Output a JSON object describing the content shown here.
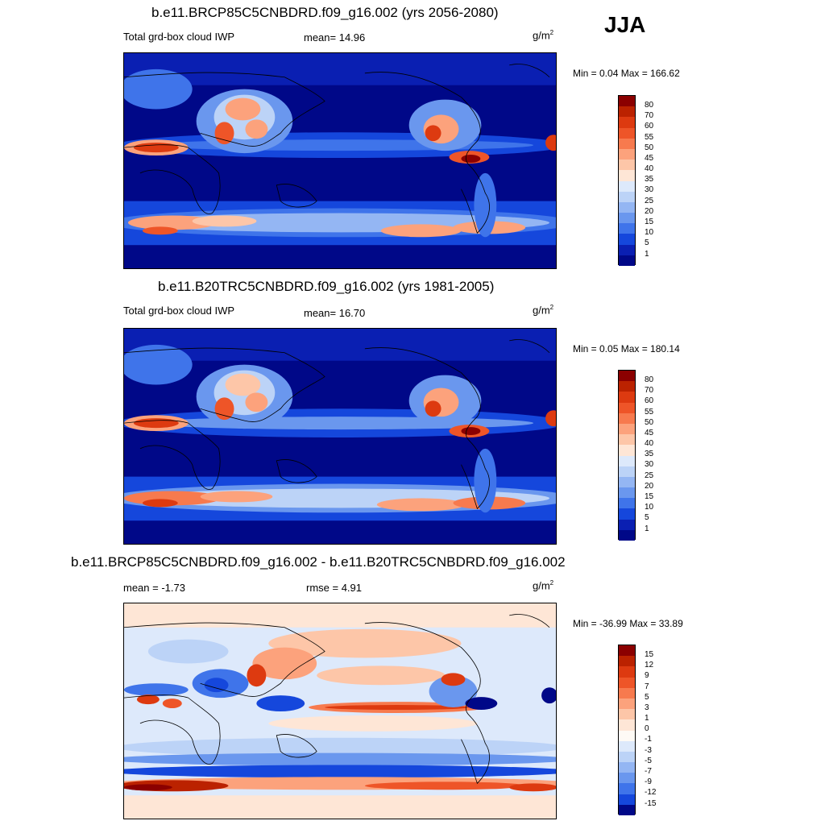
{
  "season": "JJA",
  "panels": [
    {
      "title": "b.e11.BRCP85C5CNBDRD.f09_g16.002 (yrs 2056-2080)",
      "field_label": "Total grd-box cloud IWP",
      "stat1": "mean=  14.96",
      "stat2": "",
      "units": "g/m",
      "units_sup": "2",
      "minmax": "Min =   0.04 Max = 166.62",
      "colorbar": {
        "labels": [
          "80",
          "70",
          "60",
          "55",
          "50",
          "45",
          "40",
          "35",
          "30",
          "25",
          "20",
          "15",
          "10",
          "5",
          "1"
        ],
        "colors": [
          "#8b0000",
          "#bb2200",
          "#dd3a10",
          "#ee5528",
          "#f77a4e",
          "#fca27c",
          "#fdc6a8",
          "#fee6d6",
          "#dde9fb",
          "#bcd3f7",
          "#94b6f3",
          "#6a97ee",
          "#3f74ea",
          "#1547dc",
          "#0a1fb2",
          "#000888"
        ]
      }
    },
    {
      "title": "b.e11.B20TRC5CNBDRD.f09_g16.002 (yrs 1981-2005)",
      "field_label": "Total grd-box cloud IWP",
      "stat1": "mean=  16.70",
      "stat2": "",
      "units": "g/m",
      "units_sup": "2",
      "minmax": "Min =   0.05 Max = 180.14",
      "colorbar": {
        "labels": [
          "80",
          "70",
          "60",
          "55",
          "50",
          "45",
          "40",
          "35",
          "30",
          "25",
          "20",
          "15",
          "10",
          "5",
          "1"
        ],
        "colors": [
          "#8b0000",
          "#bb2200",
          "#dd3a10",
          "#ee5528",
          "#f77a4e",
          "#fca27c",
          "#fdc6a8",
          "#fee6d6",
          "#dde9fb",
          "#bcd3f7",
          "#94b6f3",
          "#6a97ee",
          "#3f74ea",
          "#1547dc",
          "#0a1fb2",
          "#000888"
        ]
      }
    },
    {
      "title": "b.e11.BRCP85C5CNBDRD.f09_g16.002 - b.e11.B20TRC5CNBDRD.f09_g16.002",
      "field_label": "",
      "stat1": "mean =  -1.73",
      "stat2": "rmse =   4.91",
      "units": "g/m",
      "units_sup": "2",
      "minmax": "Min = -36.99 Max =  33.89",
      "colorbar": {
        "labels": [
          "15",
          "12",
          "9",
          "7",
          "5",
          "3",
          "1",
          "0",
          "-1",
          "-3",
          "-5",
          "-7",
          "-9",
          "-12",
          "-15"
        ],
        "colors": [
          "#8b0000",
          "#bb2200",
          "#dd3a10",
          "#ee5528",
          "#f77a4e",
          "#fca27c",
          "#fdc6a8",
          "#fee6d6",
          "#fefaf5",
          "#dde9fb",
          "#bcd3f7",
          "#94b6f3",
          "#6a97ee",
          "#3f74ea",
          "#1547dc",
          "#000888"
        ]
      }
    }
  ]
}
